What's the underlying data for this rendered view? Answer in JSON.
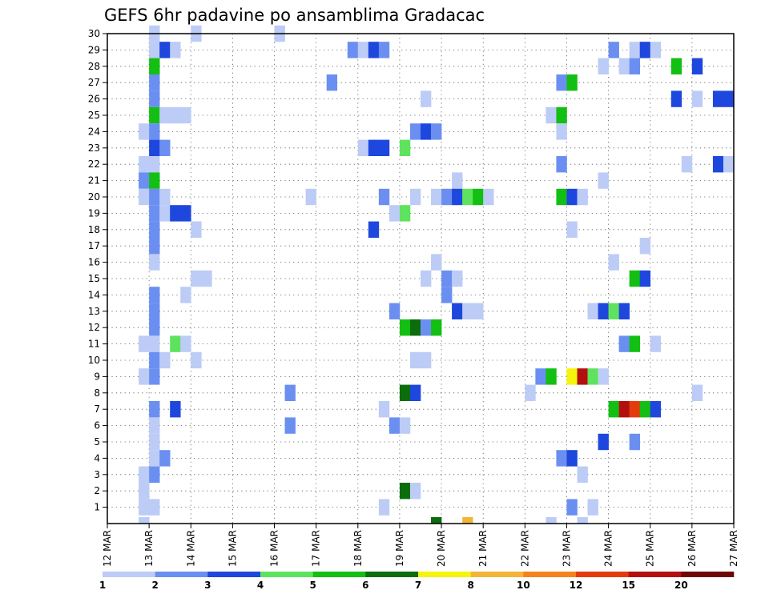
{
  "chart_data": {
    "type": "heatmap",
    "title": "GEFS 6hr padavine po ansamblima Gradacac",
    "xlabel": "",
    "ylabel": "",
    "x_ticks": [
      "12 MAR",
      "13 MAR",
      "14 MAR",
      "15 MAR",
      "16 MAR",
      "17 MAR",
      "18 MAR",
      "19 MAR",
      "20 MAR",
      "21 MAR",
      "22 MAR",
      "23 MAR",
      "24 MAR",
      "25 MAR",
      "26 MAR",
      "27 MAR"
    ],
    "x_range_days": [
      12,
      27
    ],
    "y_ticks": [
      1,
      2,
      3,
      4,
      5,
      6,
      7,
      8,
      9,
      10,
      11,
      12,
      13,
      14,
      15,
      16,
      17,
      18,
      19,
      20,
      21,
      22,
      23,
      24,
      25,
      26,
      27,
      28,
      29,
      30
    ],
    "y_range": [
      0,
      30
    ],
    "grid": true,
    "colorbar": {
      "labels": [
        "1",
        "2",
        "3",
        "4",
        "5",
        "6",
        "7",
        "8",
        "10",
        "12",
        "15",
        "20"
      ],
      "colors": [
        "#bcccf6",
        "#6b8ff1",
        "#1e47dd",
        "#5ee35e",
        "#12bf12",
        "#0b6d0b",
        "#f5f50b",
        "#f4b437",
        "#f5821e",
        "#e33b0d",
        "#b40f0f",
        "#6e0808"
      ]
    },
    "cells": [
      [
        13.0,
        30,
        1
      ],
      [
        14.0,
        30,
        1
      ],
      [
        16.0,
        30,
        1
      ],
      [
        13.0,
        29,
        1
      ],
      [
        13.25,
        29,
        3
      ],
      [
        13.5,
        29,
        1
      ],
      [
        17.75,
        29,
        2
      ],
      [
        18.0,
        29,
        1
      ],
      [
        18.25,
        29,
        3
      ],
      [
        18.5,
        29,
        2
      ],
      [
        24.0,
        29,
        2
      ],
      [
        24.5,
        29,
        1
      ],
      [
        24.75,
        29,
        3
      ],
      [
        25.0,
        29,
        1
      ],
      [
        13.0,
        28,
        5
      ],
      [
        23.75,
        28,
        1
      ],
      [
        24.25,
        28,
        1
      ],
      [
        24.5,
        28,
        2
      ],
      [
        25.5,
        28,
        5
      ],
      [
        26.0,
        28,
        3
      ],
      [
        13.0,
        27,
        2
      ],
      [
        17.25,
        27,
        2
      ],
      [
        22.75,
        27,
        2
      ],
      [
        23.0,
        27,
        5
      ],
      [
        13.0,
        26,
        2
      ],
      [
        19.5,
        26,
        1
      ],
      [
        25.5,
        26,
        3
      ],
      [
        26.0,
        26,
        1
      ],
      [
        26.5,
        26,
        3
      ],
      [
        26.75,
        26,
        3
      ],
      [
        13.0,
        25,
        5
      ],
      [
        13.25,
        25,
        1
      ],
      [
        13.5,
        25,
        1
      ],
      [
        13.75,
        25,
        1
      ],
      [
        22.5,
        25,
        1
      ],
      [
        22.75,
        25,
        5
      ],
      [
        12.75,
        24,
        1
      ],
      [
        13.0,
        24,
        2
      ],
      [
        19.25,
        24,
        2
      ],
      [
        19.5,
        24,
        3
      ],
      [
        19.75,
        24,
        2
      ],
      [
        22.75,
        24,
        1
      ],
      [
        13.0,
        23,
        3
      ],
      [
        13.25,
        23,
        2
      ],
      [
        18.0,
        23,
        1
      ],
      [
        18.25,
        23,
        3
      ],
      [
        18.5,
        23,
        3
      ],
      [
        19.0,
        23,
        4
      ],
      [
        12.75,
        22,
        1
      ],
      [
        13.0,
        22,
        1
      ],
      [
        22.75,
        22,
        2
      ],
      [
        25.75,
        22,
        1
      ],
      [
        26.5,
        22,
        3
      ],
      [
        26.75,
        22,
        1
      ],
      [
        12.75,
        21,
        2
      ],
      [
        13.0,
        21,
        5
      ],
      [
        20.25,
        21,
        1
      ],
      [
        23.75,
        21,
        1
      ],
      [
        12.75,
        20,
        1
      ],
      [
        13.0,
        20,
        2
      ],
      [
        13.25,
        20,
        1
      ],
      [
        16.75,
        20,
        1
      ],
      [
        18.5,
        20,
        2
      ],
      [
        19.25,
        20,
        1
      ],
      [
        19.75,
        20,
        1
      ],
      [
        20.0,
        20,
        2
      ],
      [
        20.25,
        20,
        3
      ],
      [
        20.5,
        20,
        4
      ],
      [
        20.75,
        20,
        5
      ],
      [
        21.0,
        20,
        1
      ],
      [
        22.75,
        20,
        5
      ],
      [
        23.0,
        20,
        3
      ],
      [
        23.25,
        20,
        1
      ],
      [
        13.0,
        19,
        2
      ],
      [
        13.25,
        19,
        1
      ],
      [
        13.5,
        19,
        3
      ],
      [
        13.75,
        19,
        3
      ],
      [
        18.75,
        19,
        1
      ],
      [
        19.0,
        19,
        4
      ],
      [
        13.0,
        18,
        2
      ],
      [
        14.0,
        18,
        1
      ],
      [
        18.25,
        18,
        3
      ],
      [
        23.0,
        18,
        1
      ],
      [
        13.0,
        17,
        2
      ],
      [
        24.75,
        17,
        1
      ],
      [
        13.0,
        16,
        1
      ],
      [
        19.75,
        16,
        1
      ],
      [
        24.0,
        16,
        1
      ],
      [
        14.0,
        15,
        1
      ],
      [
        14.25,
        15,
        1
      ],
      [
        19.5,
        15,
        1
      ],
      [
        20.0,
        15,
        2
      ],
      [
        20.25,
        15,
        1
      ],
      [
        24.5,
        15,
        5
      ],
      [
        24.75,
        15,
        3
      ],
      [
        13.0,
        14,
        2
      ],
      [
        13.75,
        14,
        1
      ],
      [
        20.0,
        14,
        2
      ],
      [
        13.0,
        13,
        2
      ],
      [
        18.75,
        13,
        2
      ],
      [
        20.25,
        13,
        3
      ],
      [
        20.5,
        13,
        1
      ],
      [
        20.75,
        13,
        1
      ],
      [
        23.5,
        13,
        1
      ],
      [
        23.75,
        13,
        3
      ],
      [
        24.0,
        13,
        4
      ],
      [
        24.25,
        13,
        3
      ],
      [
        13.0,
        12,
        2
      ],
      [
        19.0,
        12,
        5
      ],
      [
        19.25,
        12,
        6
      ],
      [
        19.5,
        12,
        2
      ],
      [
        19.75,
        12,
        5
      ],
      [
        12.75,
        11,
        1
      ],
      [
        13.0,
        11,
        1
      ],
      [
        13.5,
        11,
        4
      ],
      [
        13.75,
        11,
        1
      ],
      [
        24.25,
        11,
        2
      ],
      [
        24.5,
        11,
        5
      ],
      [
        25.0,
        11,
        1
      ],
      [
        13.0,
        10,
        2
      ],
      [
        13.25,
        10,
        1
      ],
      [
        14.0,
        10,
        1
      ],
      [
        19.25,
        10,
        1
      ],
      [
        19.5,
        10,
        1
      ],
      [
        12.75,
        9,
        1
      ],
      [
        13.0,
        9,
        2
      ],
      [
        22.25,
        9,
        2
      ],
      [
        22.5,
        9,
        5
      ],
      [
        23.0,
        9,
        7
      ],
      [
        23.25,
        9,
        11
      ],
      [
        23.5,
        9,
        4
      ],
      [
        23.75,
        9,
        1
      ],
      [
        16.25,
        8,
        2
      ],
      [
        19.0,
        8,
        6
      ],
      [
        19.25,
        8,
        3
      ],
      [
        22.0,
        8,
        1
      ],
      [
        26.0,
        8,
        1
      ],
      [
        13.0,
        7,
        2
      ],
      [
        13.5,
        7,
        3
      ],
      [
        18.5,
        7,
        1
      ],
      [
        24.0,
        7,
        5
      ],
      [
        24.25,
        7,
        11
      ],
      [
        24.5,
        7,
        10
      ],
      [
        24.75,
        7,
        5
      ],
      [
        25.0,
        7,
        3
      ],
      [
        13.0,
        6,
        1
      ],
      [
        16.25,
        6,
        2
      ],
      [
        18.75,
        6,
        2
      ],
      [
        19.0,
        6,
        1
      ],
      [
        13.0,
        5,
        1
      ],
      [
        23.75,
        5,
        3
      ],
      [
        24.5,
        5,
        2
      ],
      [
        13.0,
        4,
        1
      ],
      [
        13.25,
        4,
        2
      ],
      [
        22.75,
        4,
        2
      ],
      [
        23.0,
        4,
        3
      ],
      [
        12.75,
        3,
        1
      ],
      [
        13.0,
        3,
        2
      ],
      [
        23.25,
        3,
        1
      ],
      [
        12.75,
        2,
        1
      ],
      [
        19.0,
        2,
        6
      ],
      [
        19.25,
        2,
        1
      ],
      [
        12.75,
        1,
        1
      ],
      [
        13.0,
        1,
        1
      ],
      [
        18.5,
        1,
        1
      ],
      [
        23.0,
        1,
        2
      ],
      [
        23.5,
        1,
        1
      ],
      [
        12.75,
        0,
        1
      ],
      [
        19.75,
        0,
        6
      ],
      [
        20.5,
        0,
        8
      ],
      [
        22.5,
        0,
        1
      ],
      [
        23.25,
        0,
        1
      ]
    ]
  }
}
